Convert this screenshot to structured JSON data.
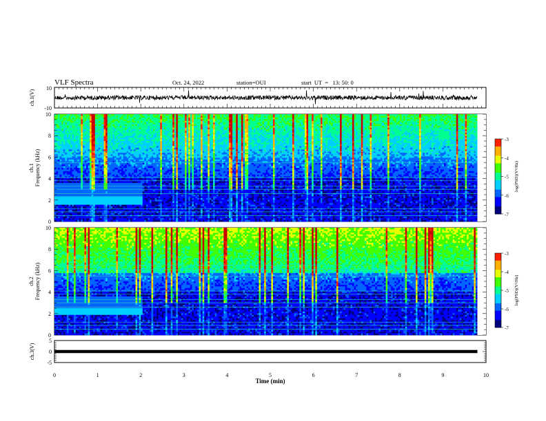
{
  "header": {
    "title": "VLF Spectra",
    "date": "Oct. 24, 2022",
    "station": "station=OUI",
    "start": "start  UT  =   13: 50: 0"
  },
  "colors": {
    "colormap": [
      "#00007a",
      "#0000ff",
      "#0064ff",
      "#00d0ff",
      "#00ff90",
      "#40ff00",
      "#e8ff00",
      "#ffb000",
      "#ff2000",
      "#c80000",
      "#ffffff"
    ],
    "trace": "#000000"
  },
  "chart_data": [
    {
      "type": "line",
      "name": "ch1-waveform",
      "ylabel": "ch.1(V)",
      "ylim": [
        -10,
        10
      ],
      "yticks": [
        "10",
        "-10"
      ],
      "xlim": [
        0,
        10
      ],
      "data_end_min": 9.8,
      "baseline": 0,
      "amplitude": 1.2
    },
    {
      "type": "heatmap",
      "name": "ch1-spectrogram",
      "ylabel": "ch.1\nFrequency (kHz)",
      "ylim": [
        0,
        10
      ],
      "yticks": [
        "0",
        "2",
        "4",
        "6",
        "8",
        "10"
      ],
      "xlim": [
        0,
        10
      ],
      "data_end_min": 9.8,
      "colorbar": {
        "label": "log(PSD)(V²/Hz)",
        "range": [
          -7,
          -3
        ],
        "ticks": [
          "-7",
          "-6",
          "-5",
          "-4",
          "-3"
        ]
      },
      "features": {
        "band_khz": [
          1.6,
          2.4
        ],
        "band_end_min": 2.05,
        "upper_band_khz": [
          6.0,
          10.0
        ]
      }
    },
    {
      "type": "heatmap",
      "name": "ch2-spectrogram",
      "ylabel": "ch.2\nFrequency (kHz)",
      "ylim": [
        0,
        10
      ],
      "yticks": [
        "0",
        "2",
        "4",
        "6",
        "8",
        "10"
      ],
      "xlim": [
        0,
        10
      ],
      "data_end_min": 9.8,
      "colorbar": {
        "label": "log(PSD)(V²/Hz)",
        "range": [
          -7,
          -3
        ],
        "ticks": [
          "-7",
          "-6",
          "-5",
          "-4",
          "-3"
        ]
      },
      "features": {
        "band_khz": [
          1.9,
          2.5
        ],
        "band_end_min": 2.05,
        "upper_band_khz": [
          5.8,
          10.0
        ]
      }
    },
    {
      "type": "line",
      "name": "ch3-waveform",
      "ylabel": "ch.3(V)",
      "ylim": [
        -5,
        5
      ],
      "yticks": [
        "5",
        "0",
        "-5"
      ],
      "xlim": [
        0,
        10
      ],
      "data_end_min": 9.8,
      "baseline": 0,
      "amplitude": 0.25
    }
  ],
  "xaxis": {
    "label": "Time (min)",
    "ticks": [
      "0",
      "1",
      "2",
      "3",
      "4",
      "5",
      "6",
      "7",
      "8",
      "9",
      "10"
    ]
  }
}
